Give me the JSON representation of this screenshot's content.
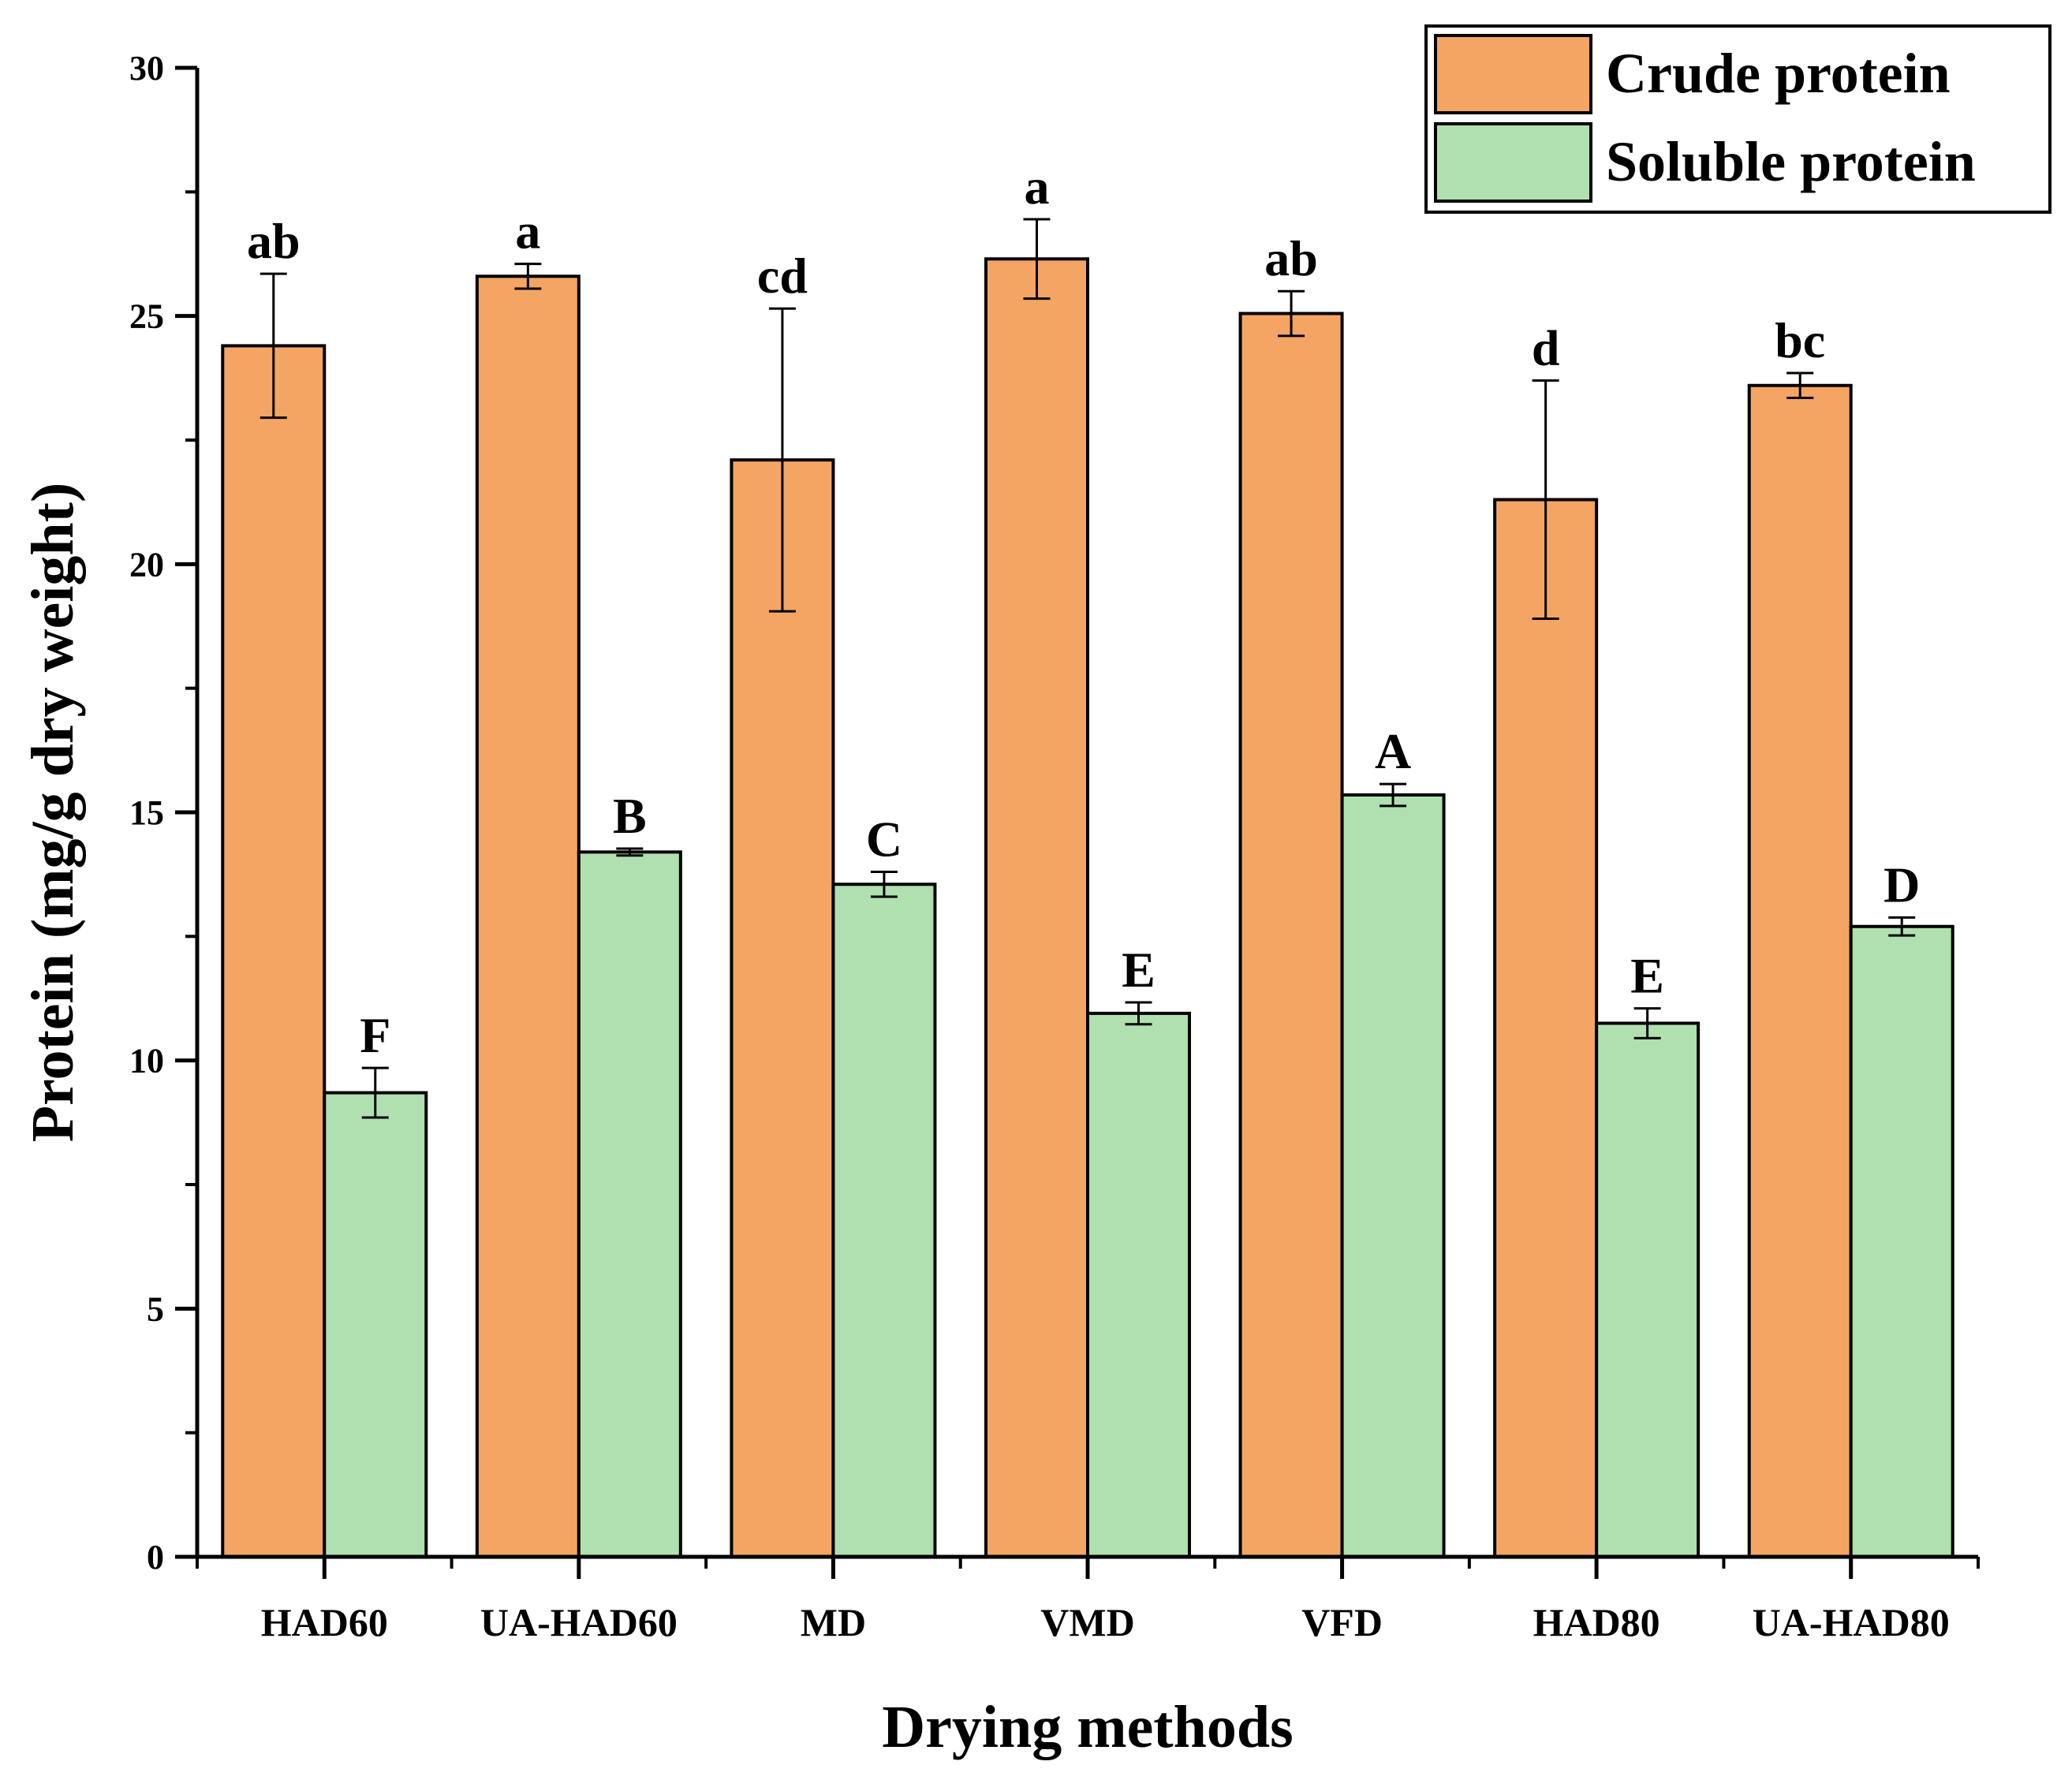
{
  "chart_data": {
    "type": "bar",
    "title": "",
    "xlabel": "Drying methods",
    "ylabel": "Protein (mg/g dry weight)",
    "ylim": [
      0,
      30
    ],
    "yticks": [
      0,
      5,
      10,
      15,
      20,
      25,
      30
    ],
    "categories": [
      "HAD60",
      "UA-HAD60",
      "MD",
      "VMD",
      "VFD",
      "HAD80",
      "UA-HAD80"
    ],
    "legend_position": "top-right",
    "series": [
      {
        "name": "Crude protein",
        "color": "#F4A563",
        "values": [
          24.4,
          25.8,
          22.1,
          26.15,
          25.05,
          21.3,
          23.6
        ],
        "errors": [
          1.45,
          0.25,
          3.05,
          0.8,
          0.45,
          2.4,
          0.25
        ],
        "letters": [
          "ab",
          "a",
          "cd",
          "a",
          "ab",
          "d",
          "bc"
        ]
      },
      {
        "name": "Soluble protein",
        "color": "#B0E0B0",
        "values": [
          9.35,
          14.2,
          13.55,
          10.95,
          15.35,
          10.75,
          12.7
        ],
        "errors": [
          0.5,
          0.07,
          0.25,
          0.22,
          0.22,
          0.3,
          0.18
        ],
        "letters": [
          "F",
          "B",
          "C",
          "E",
          "A",
          "E",
          "D"
        ]
      }
    ]
  }
}
